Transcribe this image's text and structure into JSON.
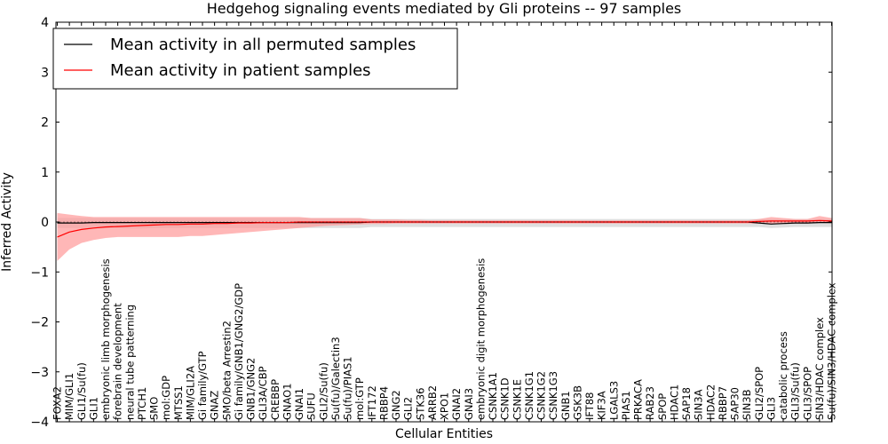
{
  "chart_data": {
    "type": "line",
    "title": "Hedgehog signaling events mediated by Gli proteins -- 97 samples",
    "xlabel": "Cellular Entities",
    "ylabel": "Inferred Activity",
    "ylim": [
      -4,
      4
    ],
    "yticks": [
      -4,
      -3,
      -2,
      -1,
      0,
      1,
      2,
      3,
      4
    ],
    "ytick_labels": [
      "−4",
      "−3",
      "−2",
      "−1",
      "0",
      "1",
      "2",
      "3",
      "4"
    ],
    "grid": false,
    "legend_position": "top-left",
    "categories": [
      "FOXA2",
      "MIM/GLI1",
      "GLI1/Su(fu)",
      "GLI1",
      "embryonic limb morphogenesis",
      "forebrain development",
      "neural tube patterning",
      "PTCH1",
      "SMO",
      "mol:GDP",
      "MTSS1",
      "MIM/GLI2A",
      "Gi family/GTP",
      "GNAZ",
      "SMO/beta Arrestin2",
      "Gi family/GNB1/GNG2/GDP",
      "GNB1/GNG2",
      "GLI3A/CBP",
      "CREBBP",
      "GNAO1",
      "GNAI1",
      "SUFU",
      "GLI2/Su(fu)",
      "Su(fu)/Galectin3",
      "Su(fu)/PIAS1",
      "mol:GTP",
      "IFT172",
      "RBBP4",
      "GNG2",
      "GLI2",
      "STK36",
      "ARRB2",
      "XPO1",
      "GNAI2",
      "GNAI3",
      "embryonic digit morphogenesis",
      "CSNK1A1",
      "CSNK1D",
      "CSNK1E",
      "CSNK1G1",
      "CSNK1G2",
      "CSNK1G3",
      "GNB1",
      "GSK3B",
      "IFT88",
      "KIF3A",
      "LGALS3",
      "PIAS1",
      "PRKACA",
      "RAB23",
      "SPOP",
      "HDAC1",
      "SAP18",
      "SIN3A",
      "HDAC2",
      "RBBP7",
      "SAP30",
      "SIN3B",
      "GLI2/SPOP",
      "GLI3",
      "catabolic process",
      "GLI3/Su(fu)",
      "GLI3/SPOP",
      "SIN3/HDAC complex",
      "Su(fu)/SIN3/HDAC complex"
    ],
    "series": [
      {
        "name": "Mean activity in all permuted samples",
        "color": "#000000",
        "band_color": "#d9d9d9",
        "values": [
          -0.02,
          -0.02,
          -0.02,
          -0.01,
          -0.01,
          -0.01,
          -0.01,
          -0.01,
          -0.01,
          -0.01,
          -0.01,
          -0.01,
          -0.01,
          -0.01,
          -0.01,
          -0.01,
          -0.01,
          -0.01,
          -0.01,
          -0.01,
          -0.01,
          -0.01,
          -0.01,
          -0.01,
          -0.01,
          -0.01,
          0.0,
          0.0,
          0.0,
          0.0,
          0.0,
          0.0,
          0.0,
          0.0,
          0.0,
          0.0,
          0.0,
          0.0,
          0.0,
          0.0,
          0.0,
          0.0,
          0.0,
          0.0,
          0.0,
          0.0,
          0.0,
          0.0,
          0.0,
          0.0,
          0.0,
          0.0,
          0.0,
          0.0,
          0.0,
          0.0,
          0.0,
          0.0,
          -0.02,
          -0.04,
          -0.03,
          -0.02,
          -0.02,
          -0.01,
          -0.01
        ],
        "upper": [
          0.08,
          0.08,
          0.08,
          0.08,
          0.08,
          0.08,
          0.08,
          0.08,
          0.08,
          0.08,
          0.08,
          0.08,
          0.08,
          0.08,
          0.08,
          0.08,
          0.08,
          0.08,
          0.08,
          0.08,
          0.08,
          0.08,
          0.08,
          0.08,
          0.08,
          0.08,
          0.06,
          0.06,
          0.06,
          0.06,
          0.06,
          0.06,
          0.06,
          0.06,
          0.06,
          0.06,
          0.06,
          0.06,
          0.06,
          0.06,
          0.06,
          0.06,
          0.06,
          0.06,
          0.06,
          0.06,
          0.06,
          0.06,
          0.06,
          0.06,
          0.06,
          0.06,
          0.06,
          0.06,
          0.06,
          0.06,
          0.06,
          0.06,
          0.06,
          0.06,
          0.06,
          0.06,
          0.06,
          0.06,
          0.06
        ],
        "lower": [
          -0.12,
          -0.12,
          -0.12,
          -0.12,
          -0.12,
          -0.12,
          -0.13,
          -0.13,
          -0.12,
          -0.12,
          -0.12,
          -0.12,
          -0.12,
          -0.12,
          -0.12,
          -0.12,
          -0.12,
          -0.12,
          -0.12,
          -0.12,
          -0.12,
          -0.12,
          -0.12,
          -0.12,
          -0.12,
          -0.12,
          -0.1,
          -0.1,
          -0.1,
          -0.1,
          -0.1,
          -0.1,
          -0.1,
          -0.1,
          -0.1,
          -0.1,
          -0.1,
          -0.1,
          -0.1,
          -0.1,
          -0.1,
          -0.1,
          -0.1,
          -0.1,
          -0.1,
          -0.1,
          -0.1,
          -0.1,
          -0.1,
          -0.1,
          -0.1,
          -0.1,
          -0.1,
          -0.1,
          -0.1,
          -0.1,
          -0.1,
          -0.1,
          -0.1,
          -0.12,
          -0.11,
          -0.1,
          -0.1,
          -0.1,
          -0.1
        ]
      },
      {
        "name": "Mean activity in patient samples",
        "color": "#ff0000",
        "band_color": "#ff9999",
        "values": [
          -0.3,
          -0.2,
          -0.15,
          -0.12,
          -0.1,
          -0.09,
          -0.08,
          -0.07,
          -0.06,
          -0.05,
          -0.05,
          -0.04,
          -0.04,
          -0.03,
          -0.03,
          -0.02,
          -0.02,
          -0.01,
          -0.01,
          -0.01,
          0.0,
          0.0,
          0.0,
          0.0,
          0.0,
          0.0,
          0.0,
          0.0,
          0.0,
          0.0,
          0.0,
          0.0,
          0.0,
          0.0,
          0.0,
          0.0,
          0.0,
          0.0,
          0.0,
          0.0,
          0.0,
          0.0,
          0.0,
          0.0,
          0.0,
          0.0,
          0.0,
          0.0,
          0.0,
          0.0,
          0.0,
          0.0,
          0.0,
          0.0,
          0.0,
          0.0,
          0.0,
          0.0,
          0.01,
          0.02,
          0.02,
          0.02,
          0.02,
          0.03,
          0.02
        ],
        "upper": [
          0.18,
          0.15,
          0.12,
          0.1,
          0.1,
          0.1,
          0.1,
          0.1,
          0.1,
          0.1,
          0.1,
          0.1,
          0.1,
          0.1,
          0.1,
          0.1,
          0.1,
          0.1,
          0.1,
          0.1,
          0.1,
          0.08,
          0.08,
          0.08,
          0.08,
          0.08,
          0.05,
          0.05,
          0.05,
          0.04,
          0.04,
          0.03,
          0.03,
          0.03,
          0.03,
          0.03,
          0.03,
          0.03,
          0.03,
          0.03,
          0.03,
          0.03,
          0.03,
          0.03,
          0.03,
          0.03,
          0.03,
          0.03,
          0.03,
          0.03,
          0.03,
          0.03,
          0.03,
          0.03,
          0.03,
          0.03,
          0.03,
          0.03,
          0.06,
          0.1,
          0.08,
          0.06,
          0.06,
          0.12,
          0.08
        ],
        "lower": [
          -0.78,
          -0.55,
          -0.42,
          -0.36,
          -0.32,
          -0.3,
          -0.3,
          -0.3,
          -0.3,
          -0.3,
          -0.3,
          -0.28,
          -0.28,
          -0.26,
          -0.24,
          -0.22,
          -0.2,
          -0.18,
          -0.16,
          -0.14,
          -0.12,
          -0.1,
          -0.08,
          -0.07,
          -0.06,
          -0.05,
          -0.04,
          -0.04,
          -0.03,
          -0.03,
          -0.03,
          -0.03,
          -0.03,
          -0.03,
          -0.03,
          -0.03,
          -0.03,
          -0.03,
          -0.03,
          -0.03,
          -0.03,
          -0.03,
          -0.03,
          -0.03,
          -0.03,
          -0.03,
          -0.03,
          -0.03,
          -0.03,
          -0.03,
          -0.03,
          -0.03,
          -0.03,
          -0.03,
          -0.03,
          -0.03,
          -0.03,
          -0.03,
          -0.03,
          -0.04,
          -0.04,
          -0.03,
          -0.03,
          -0.02,
          -0.02
        ]
      }
    ]
  }
}
